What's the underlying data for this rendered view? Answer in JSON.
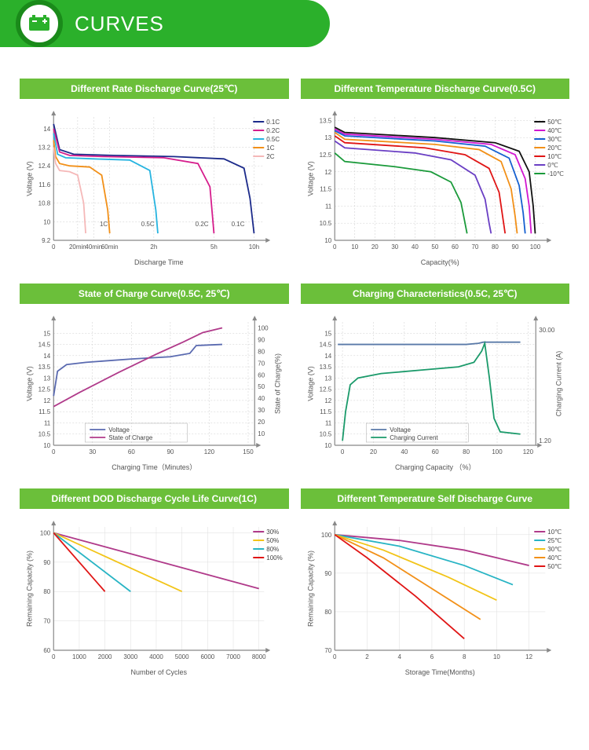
{
  "header": {
    "title": "CURVES"
  },
  "charts": [
    {
      "title": "Different Rate Discharge Curve(25℃)",
      "xlabel": "Discharge Time",
      "ylabel": "Voltage (V)",
      "xlim": [
        0,
        105
      ],
      "ylim": [
        9.2,
        14.5
      ],
      "yticks": [
        9.2,
        10.0,
        10.8,
        11.6,
        12.4,
        13.2,
        14.0
      ],
      "xticks_labels": [
        [
          0,
          "0"
        ],
        [
          12,
          "20min"
        ],
        [
          20,
          "40min"
        ],
        [
          28,
          "60min"
        ],
        [
          50,
          "2h"
        ],
        [
          80,
          "5h"
        ],
        [
          100,
          "10h"
        ]
      ],
      "grid_dashed": true,
      "series": [
        {
          "label": "0.1C",
          "color": "#1b2a8a",
          "xy": [
            [
              0,
              14.2
            ],
            [
              3,
              13.1
            ],
            [
              10,
              12.9
            ],
            [
              30,
              12.85
            ],
            [
              60,
              12.8
            ],
            [
              85,
              12.7
            ],
            [
              95,
              12.3
            ],
            [
              98,
              11.0
            ],
            [
              100,
              9.5
            ]
          ]
        },
        {
          "label": "0.2C",
          "color": "#d61d8c",
          "xy": [
            [
              0,
              14.0
            ],
            [
              3,
              13.0
            ],
            [
              8,
              12.85
            ],
            [
              25,
              12.8
            ],
            [
              55,
              12.75
            ],
            [
              72,
              12.5
            ],
            [
              78,
              11.5
            ],
            [
              80,
              9.5
            ]
          ]
        },
        {
          "label": "0.5C",
          "color": "#27b4e0",
          "xy": [
            [
              0,
              13.8
            ],
            [
              2,
              12.9
            ],
            [
              6,
              12.75
            ],
            [
              20,
              12.7
            ],
            [
              38,
              12.65
            ],
            [
              48,
              12.2
            ],
            [
              51,
              10.5
            ],
            [
              52,
              9.5
            ]
          ]
        },
        {
          "label": "1C",
          "color": "#f29018",
          "xy": [
            [
              0,
              13.5
            ],
            [
              1,
              12.8
            ],
            [
              3,
              12.5
            ],
            [
              8,
              12.4
            ],
            [
              18,
              12.35
            ],
            [
              24,
              12.0
            ],
            [
              27,
              10.5
            ],
            [
              28,
              9.5
            ]
          ]
        },
        {
          "label": "2C",
          "color": "#f5b8b8",
          "xy": [
            [
              0,
              13.2
            ],
            [
              1,
              12.5
            ],
            [
              3,
              12.2
            ],
            [
              8,
              12.15
            ],
            [
              12,
              12.0
            ],
            [
              15,
              10.8
            ],
            [
              16,
              9.5
            ]
          ]
        }
      ],
      "inline_labels": [
        [
          "1C",
          25,
          9.8,
          "#f29018"
        ],
        [
          "0.5C",
          47,
          9.8,
          "#27b4e0"
        ],
        [
          "0.2C",
          74,
          9.8,
          "#d61d8c"
        ],
        [
          "0.1C",
          92,
          9.8,
          "#1b2a8a"
        ]
      ]
    },
    {
      "title": "Different Temperature Discharge Curve(0.5C)",
      "xlabel": "Capacity(%)",
      "ylabel": "Voltage (V)",
      "xlim": [
        0,
        105
      ],
      "ylim": [
        10.0,
        13.6
      ],
      "yticks": [
        10.0,
        10.5,
        11.0,
        11.5,
        12.0,
        12.5,
        13.0,
        13.5
      ],
      "xticks_labels": [
        [
          0,
          "0"
        ],
        [
          10,
          "10"
        ],
        [
          20,
          "20"
        ],
        [
          30,
          "30"
        ],
        [
          40,
          "40"
        ],
        [
          50,
          "50"
        ],
        [
          60,
          "60"
        ],
        [
          70,
          "70"
        ],
        [
          80,
          "80"
        ],
        [
          90,
          "90"
        ],
        [
          100,
          "100"
        ]
      ],
      "grid_dashed": true,
      "series": [
        {
          "label": "50℃",
          "color": "#111111",
          "xy": [
            [
              0,
              13.3
            ],
            [
              5,
              13.15
            ],
            [
              50,
              13.0
            ],
            [
              80,
              12.85
            ],
            [
              92,
              12.6
            ],
            [
              97,
              12.0
            ],
            [
              99,
              11.0
            ],
            [
              100,
              10.2
            ]
          ]
        },
        {
          "label": "40℃",
          "color": "#d017d0",
          "xy": [
            [
              0,
              13.25
            ],
            [
              5,
              13.1
            ],
            [
              50,
              12.95
            ],
            [
              78,
              12.8
            ],
            [
              90,
              12.5
            ],
            [
              95,
              11.8
            ],
            [
              97,
              11.0
            ],
            [
              98,
              10.2
            ]
          ]
        },
        {
          "label": "30℃",
          "color": "#1560d0",
          "xy": [
            [
              0,
              13.2
            ],
            [
              5,
              13.05
            ],
            [
              50,
              12.9
            ],
            [
              75,
              12.75
            ],
            [
              87,
              12.4
            ],
            [
              92,
              11.6
            ],
            [
              94,
              10.8
            ],
            [
              95,
              10.2
            ]
          ]
        },
        {
          "label": "20℃",
          "color": "#f29018",
          "xy": [
            [
              0,
              13.15
            ],
            [
              5,
              12.95
            ],
            [
              50,
              12.8
            ],
            [
              72,
              12.65
            ],
            [
              83,
              12.3
            ],
            [
              88,
              11.5
            ],
            [
              90,
              10.7
            ],
            [
              91,
              10.2
            ]
          ]
        },
        {
          "label": "10℃",
          "color": "#e01515",
          "xy": [
            [
              0,
              13.05
            ],
            [
              5,
              12.85
            ],
            [
              45,
              12.7
            ],
            [
              65,
              12.5
            ],
            [
              77,
              12.1
            ],
            [
              82,
              11.4
            ],
            [
              84,
              10.6
            ],
            [
              85,
              10.2
            ]
          ]
        },
        {
          "label": "0℃",
          "color": "#6a3fc4",
          "xy": [
            [
              0,
              12.9
            ],
            [
              5,
              12.7
            ],
            [
              40,
              12.55
            ],
            [
              58,
              12.35
            ],
            [
              70,
              11.9
            ],
            [
              75,
              11.2
            ],
            [
              77,
              10.5
            ],
            [
              78,
              10.2
            ]
          ]
        },
        {
          "label": "-10℃",
          "color": "#1a9a3a",
          "xy": [
            [
              0,
              12.55
            ],
            [
              5,
              12.3
            ],
            [
              30,
              12.15
            ],
            [
              48,
              12.0
            ],
            [
              58,
              11.7
            ],
            [
              63,
              11.1
            ],
            [
              65,
              10.5
            ],
            [
              66,
              10.2
            ]
          ]
        }
      ]
    },
    {
      "title": "State of Charge Curve(0.5C, 25℃)",
      "xlabel": "Charging Time（Minutes）",
      "ylabel": "Voltage (V)",
      "ylabel2": "State of Charge(%)",
      "xlim": [
        0,
        155
      ],
      "ylim": [
        10.0,
        15.5
      ],
      "ylim2": [
        0,
        105
      ],
      "yticks": [
        10.0,
        10.5,
        11.0,
        11.5,
        12.0,
        12.5,
        13.0,
        13.5,
        14.0,
        14.5,
        15.0
      ],
      "yticks2": [
        10,
        20,
        30,
        40,
        50,
        60,
        70,
        80,
        90,
        100
      ],
      "xticks_labels": [
        [
          0,
          "0"
        ],
        [
          30,
          "30"
        ],
        [
          60,
          "60"
        ],
        [
          90,
          "90"
        ],
        [
          120,
          "120"
        ],
        [
          150,
          "150"
        ]
      ],
      "grid_dashed": true,
      "legend_box": true,
      "series": [
        {
          "label": "Voltage",
          "color": "#5a6ab0",
          "axis": 1,
          "xy": [
            [
              0,
              12.2
            ],
            [
              3,
              13.3
            ],
            [
              10,
              13.6
            ],
            [
              25,
              13.7
            ],
            [
              60,
              13.85
            ],
            [
              90,
              13.95
            ],
            [
              105,
              14.1
            ],
            [
              110,
              14.45
            ],
            [
              130,
              14.5
            ]
          ]
        },
        {
          "label": "State of Charge",
          "color": "#b03a8a",
          "axis": 2,
          "xy": [
            [
              0,
              33
            ],
            [
              20,
              45
            ],
            [
              50,
              62
            ],
            [
              80,
              78
            ],
            [
              100,
              88
            ],
            [
              115,
              96
            ],
            [
              130,
              100
            ]
          ]
        }
      ]
    },
    {
      "title": "Charging Characteristics(0.5C, 25℃)",
      "xlabel": "Charging Capacity （%）",
      "ylabel": "Voltage (V)",
      "ylabel2": "Charging Current (A)",
      "xlim": [
        -5,
        125
      ],
      "ylim": [
        10.0,
        15.5
      ],
      "ylim2": [
        0,
        32
      ],
      "yticks": [
        10.0,
        10.5,
        11.0,
        11.5,
        12.0,
        12.5,
        13.0,
        13.5,
        14.0,
        14.5,
        15.0
      ],
      "yticks2_labels": [
        [
          1.2,
          "1.20"
        ],
        [
          30,
          "30.00"
        ]
      ],
      "xticks_labels": [
        [
          0,
          "0"
        ],
        [
          20,
          "20"
        ],
        [
          40,
          "40"
        ],
        [
          60,
          "60"
        ],
        [
          80,
          "80"
        ],
        [
          100,
          "100"
        ],
        [
          120,
          "120"
        ]
      ],
      "grid_dashed": true,
      "legend_box": true,
      "series": [
        {
          "label": "Voltage",
          "color": "#5a7aa8",
          "axis": 1,
          "xy": [
            [
              -3,
              14.5
            ],
            [
              80,
              14.5
            ],
            [
              88,
              14.55
            ],
            [
              91,
              14.6
            ],
            [
              115,
              14.6
            ]
          ]
        },
        {
          "label": "Charging Current",
          "color": "#1a9a6a",
          "axis": 1,
          "xy": [
            [
              0,
              10.2
            ],
            [
              2,
              11.5
            ],
            [
              5,
              12.7
            ],
            [
              10,
              13.0
            ],
            [
              25,
              13.2
            ],
            [
              50,
              13.35
            ],
            [
              75,
              13.5
            ],
            [
              85,
              13.7
            ],
            [
              90,
              14.2
            ],
            [
              92,
              14.55
            ],
            [
              95,
              13.0
            ],
            [
              98,
              11.2
            ],
            [
              102,
              10.6
            ],
            [
              115,
              10.5
            ]
          ]
        }
      ]
    },
    {
      "title": "Different DOD Discharge Cycle Life Curve(1C)",
      "xlabel": "Number of Cycles",
      "ylabel": "Remaining Capacity (%)",
      "xlim": [
        0,
        8200
      ],
      "ylim": [
        60,
        102
      ],
      "yticks": [
        60,
        70,
        80,
        90,
        100
      ],
      "xticks_labels": [
        [
          0,
          "0"
        ],
        [
          1000,
          "1000"
        ],
        [
          2000,
          "2000"
        ],
        [
          3000,
          "3000"
        ],
        [
          4000,
          "4000"
        ],
        [
          5000,
          "5000"
        ],
        [
          6000,
          "6000"
        ],
        [
          7000,
          "7000"
        ],
        [
          8000,
          "8000"
        ]
      ],
      "grid_dashed": false,
      "series": [
        {
          "label": "30%",
          "color": "#b03a8a",
          "xy": [
            [
              0,
              100
            ],
            [
              8000,
              81
            ]
          ]
        },
        {
          "label": "50%",
          "color": "#f2c418",
          "xy": [
            [
              0,
              100
            ],
            [
              5000,
              80
            ]
          ]
        },
        {
          "label": "80%",
          "color": "#27b4c4",
          "xy": [
            [
              0,
              100
            ],
            [
              3000,
              80
            ]
          ]
        },
        {
          "label": "100%",
          "color": "#e01515",
          "xy": [
            [
              0,
              100
            ],
            [
              2000,
              80
            ]
          ]
        }
      ]
    },
    {
      "title": "Different Temperature Self Discharge Curve",
      "xlabel": "Storage Time(Months)",
      "ylabel": "Remaining Capacity (%)",
      "xlim": [
        0,
        13
      ],
      "ylim": [
        70,
        102
      ],
      "yticks": [
        70,
        80,
        90,
        100
      ],
      "xticks_labels": [
        [
          0,
          "0"
        ],
        [
          2,
          "2"
        ],
        [
          4,
          "4"
        ],
        [
          6,
          "6"
        ],
        [
          8,
          "8"
        ],
        [
          10,
          "10"
        ],
        [
          12,
          "12"
        ]
      ],
      "grid_dashed": false,
      "series": [
        {
          "label": "10℃",
          "color": "#b03a8a",
          "xy": [
            [
              0,
              100
            ],
            [
              4,
              98.5
            ],
            [
              8,
              96
            ],
            [
              12,
              92
            ]
          ]
        },
        {
          "label": "25℃",
          "color": "#27b4c4",
          "xy": [
            [
              0,
              100
            ],
            [
              4,
              97
            ],
            [
              8,
              92
            ],
            [
              11,
              87
            ]
          ]
        },
        {
          "label": "30℃",
          "color": "#f2c418",
          "xy": [
            [
              0,
              100
            ],
            [
              3,
              96
            ],
            [
              7,
              89
            ],
            [
              10,
              83
            ]
          ]
        },
        {
          "label": "40℃",
          "color": "#f29018",
          "xy": [
            [
              0,
              100
            ],
            [
              3,
              94
            ],
            [
              6,
              86
            ],
            [
              9,
              78
            ]
          ]
        },
        {
          "label": "50℃",
          "color": "#e01515",
          "xy": [
            [
              0,
              100
            ],
            [
              2,
              94
            ],
            [
              5,
              84
            ],
            [
              8,
              73
            ]
          ]
        }
      ]
    }
  ]
}
